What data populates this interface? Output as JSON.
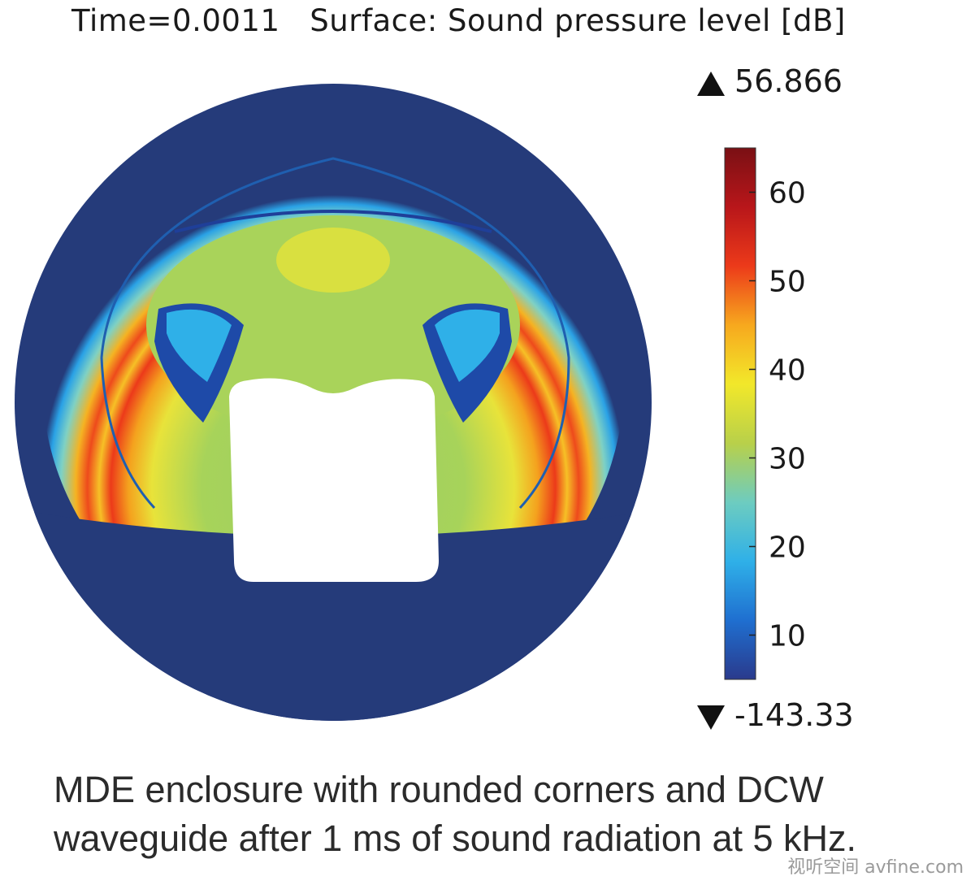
{
  "title": "Time=0.0011   Surface: Sound pressure level [dB]",
  "legend": {
    "max_value": "56.866",
    "min_value": "-143.33"
  },
  "caption": {
    "line1": "MDE enclosure with rounded corners and DCW",
    "line2": "waveguide after 1 ms of sound radiation at 5 kHz."
  },
  "watermark": "视听空间 avfine.com",
  "chart_data": {
    "type": "heatmap",
    "title": "Time=0.0011   Surface: Sound pressure level [dB]",
    "colorbar": {
      "ticks": [
        10,
        20,
        30,
        40,
        50,
        60
      ],
      "range": [
        5,
        65
      ],
      "colormap": "rainbow",
      "stops": [
        "#2a3a8c",
        "#1f6fd0",
        "#2fb0e8",
        "#6dccc0",
        "#b8d04a",
        "#f2e82a",
        "#f7a81e",
        "#ec3a1a",
        "#b8161a",
        "#7a1014"
      ]
    },
    "annotations": {
      "max": 56.866,
      "min": -143.33
    },
    "colors": {
      "background_field": "#253b7a",
      "enclosure": "#ffffff"
    }
  }
}
